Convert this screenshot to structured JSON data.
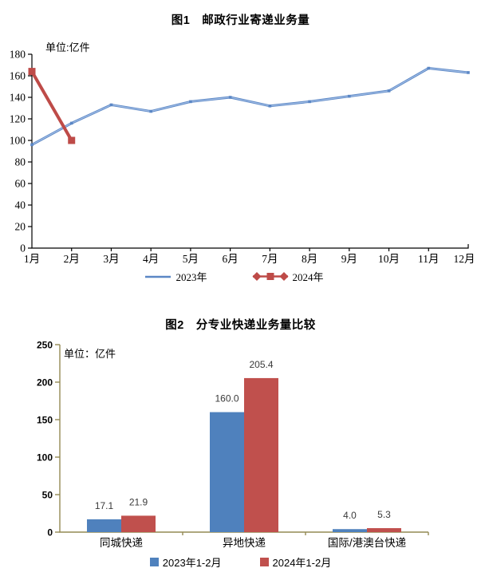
{
  "page": {
    "background": "#ffffff"
  },
  "chart_data": [
    {
      "id": "figure1",
      "type": "line",
      "title": "图1　邮政行业寄递业务量",
      "unit_label": "单位:亿件",
      "categories": [
        "1月",
        "2月",
        "3月",
        "4月",
        "5月",
        "6月",
        "7月",
        "8月",
        "9月",
        "10月",
        "11月",
        "12月"
      ],
      "series": [
        {
          "name": "2023年",
          "color": "#5b87c5",
          "sheen": "#a8c2e8",
          "marker": "none",
          "values": [
            96,
            116,
            133,
            127,
            136,
            140,
            132,
            136,
            141,
            146,
            167,
            163
          ]
        },
        {
          "name": "2024年",
          "color": "#be4b48",
          "sheen": null,
          "marker": "square",
          "values": [
            164,
            100
          ]
        }
      ],
      "ylim": [
        0,
        180
      ],
      "ytick_step": 20,
      "grid": false,
      "legend_position": "bottom",
      "axis_color": "#000000",
      "xlabel": "",
      "ylabel": "亿件"
    },
    {
      "id": "figure2",
      "type": "bar",
      "title": "图2　分专业快递业务量比较",
      "unit_label": "单位：亿件",
      "categories": [
        "同城快递",
        "异地快递",
        "国际/港澳台快递"
      ],
      "series": [
        {
          "name": "2023年1-2月",
          "color": "#4f81bd",
          "values": [
            17.1,
            160.0,
            4.0
          ]
        },
        {
          "name": "2024年1-2月",
          "color": "#c0504d",
          "values": [
            21.9,
            205.4,
            5.3
          ]
        }
      ],
      "ylim": [
        0,
        250
      ],
      "ytick_step": 50,
      "grid": false,
      "value_labels": true,
      "value_label_color": "#3a3a3a",
      "legend_position": "bottom",
      "axis_color": "#948a54",
      "xlabel": "",
      "ylabel": "亿件"
    }
  ]
}
